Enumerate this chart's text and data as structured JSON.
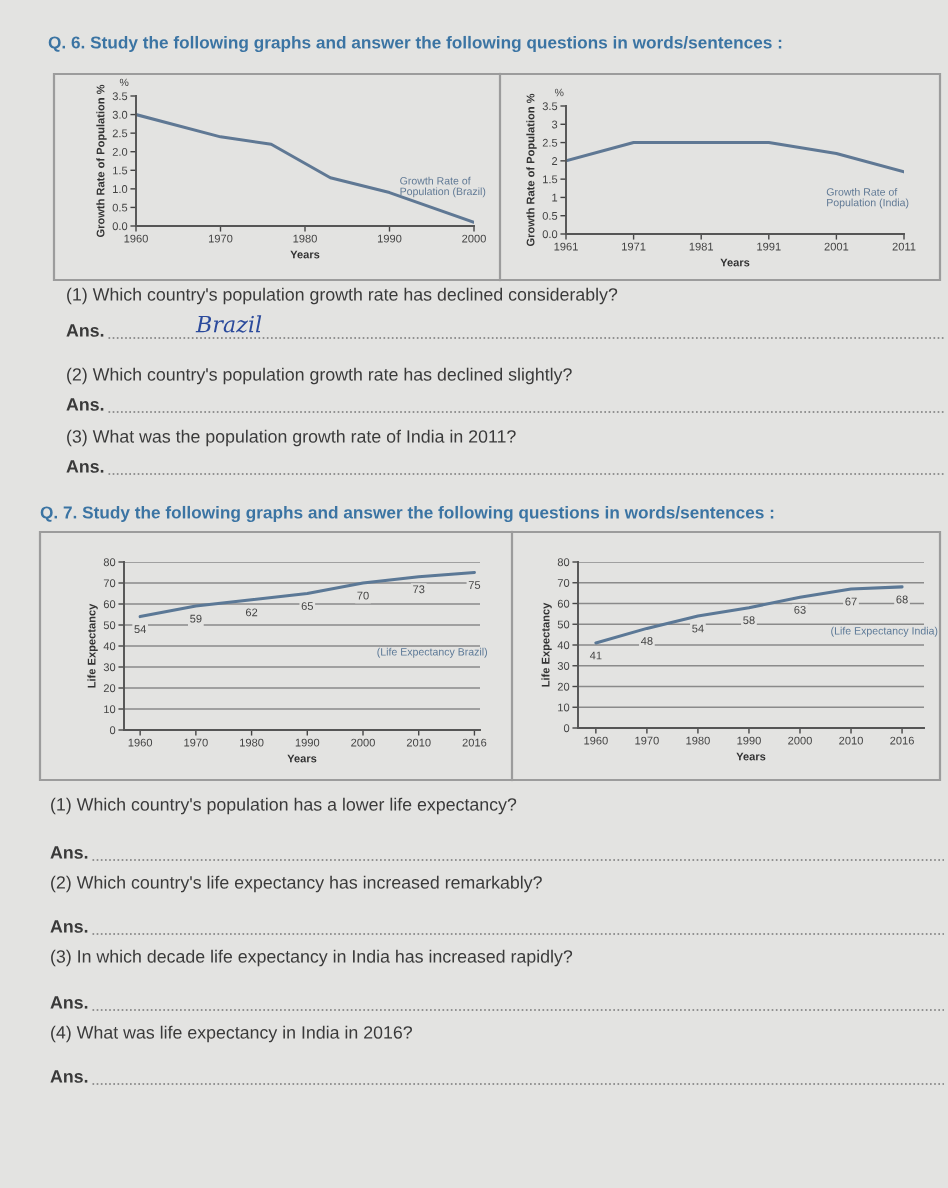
{
  "chart_data": [
    {
      "type": "line",
      "title": "Q. 6. Study the following graphs and answer the following questions in words/sentences :",
      "xlabel": "Years",
      "ylabel": "Growth Rate of Population %",
      "x": [
        1960,
        1970,
        1976,
        1983,
        1990,
        2000
      ],
      "series": [
        {
          "name": "Growth Rate of\nPopulation (Brazil)",
          "color": "#5f7894",
          "values": [
            3.0,
            2.4,
            2.2,
            1.3,
            0.9,
            0.1
          ]
        }
      ],
      "xlim": [
        1960,
        2000
      ],
      "xticks": [
        1960,
        1970,
        1980,
        1990,
        2000
      ],
      "ylim": [
        0,
        3.5
      ],
      "yticks": [
        {
          "value": 0,
          "label": "0.0"
        },
        {
          "value": 0.5,
          "label": "0.5"
        },
        {
          "value": 1,
          "label": "1.0"
        },
        {
          "value": 1.5,
          "label": "1.5"
        },
        {
          "value": 2,
          "label": "2.0"
        },
        {
          "value": 2.5,
          "label": "2.5"
        },
        {
          "value": 3,
          "label": "3.0"
        },
        {
          "value": 3.5,
          "label": "3.5"
        }
      ],
      "marker": "none",
      "line_style": "solid",
      "annotations": [
        "%"
      ]
    },
    {
      "type": "line",
      "xlabel": "Years",
      "ylabel": "Growth Rate of Population %",
      "x": [
        1961,
        1971,
        1981,
        1991,
        2001,
        2011
      ],
      "series": [
        {
          "name": "Growth Rate of\nPopulation (India)",
          "color": "#5f7894",
          "values": [
            2.0,
            2.5,
            2.5,
            2.5,
            2.2,
            1.7
          ]
        }
      ],
      "xlim": [
        1961,
        2011
      ],
      "xticks": [
        1961,
        1971,
        1981,
        1991,
        2001,
        2011
      ],
      "ylim": [
        0,
        3.5
      ],
      "yticks": [
        {
          "value": 0,
          "label": "0.0"
        },
        0.5,
        1,
        1.5,
        2,
        2.5,
        3,
        3.5
      ],
      "marker": "none",
      "line_style": "solid",
      "annotations": [
        "%",
        "(1) Which country's population growth rate has declined considerably?",
        "Ans.",
        "Brazil",
        "(2) Which country's population growth rate has declined slightly?",
        "Ans.",
        "(3) What was the population growth rate of India in 2011?",
        "Ans."
      ]
    },
    {
      "type": "line",
      "title": "Q. 7. Study the following graphs and answer the following questions in words/sentences :",
      "xlabel": "Years",
      "ylabel": "Life Expectancy",
      "categories": [
        "1960",
        "1970",
        "1980",
        "1990",
        "2000",
        "2010",
        "2016"
      ],
      "series": [
        {
          "name": "(Life Expectancy Brazil)",
          "color": "#5b7896",
          "values": [
            54,
            59,
            62,
            65,
            70,
            73,
            75
          ]
        }
      ],
      "ylim": [
        0,
        80
      ],
      "yticks": [
        0,
        10,
        20,
        30,
        40,
        50,
        60,
        70,
        80
      ],
      "grid": "y",
      "data_labels": true,
      "marker": "none",
      "line_style": "solid"
    },
    {
      "type": "line",
      "xlabel": "Years",
      "ylabel": "Life Expectancy",
      "categories": [
        "1960",
        "1970",
        "1980",
        "1990",
        "2000",
        "2010",
        "2016"
      ],
      "series": [
        {
          "name": "(Life Expectancy India)",
          "color": "#5b7896",
          "values": [
            41,
            48,
            54,
            58,
            63,
            67,
            68
          ]
        }
      ],
      "ylim": [
        0,
        80
      ],
      "yticks": [
        0,
        10,
        20,
        30,
        40,
        50,
        60,
        70,
        80
      ],
      "grid": "y",
      "data_labels": true,
      "marker": "none",
      "line_style": "solid",
      "annotations": [
        "(1) Which country's population has a lower life expectancy?",
        "Ans.",
        "(2) Which country's life expectancy has increased remarkably?",
        "Ans.",
        "(3) In which decade life expectancy in India has increased rapidly?",
        "Ans.",
        "(4) What was life expectancy in India in 2016?",
        "Ans."
      ]
    }
  ]
}
